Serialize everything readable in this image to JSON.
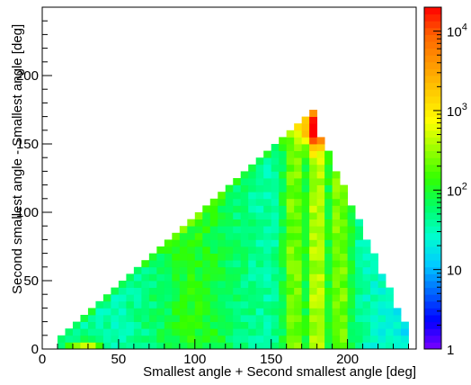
{
  "chart_data": {
    "type": "heatmap",
    "title": "",
    "xlabel": "Smallest angle + Second smallest angle [deg]",
    "ylabel": "Second smallest angle - Smallest angle [deg]",
    "xlim": [
      0,
      245
    ],
    "ylim": [
      0,
      250
    ],
    "bin_width_deg": 5,
    "x_ticks": [
      0,
      50,
      100,
      150,
      200
    ],
    "y_ticks": [
      0,
      50,
      100,
      150,
      200
    ],
    "x_tick_labels": [
      "0",
      "50",
      "100",
      "150",
      "200"
    ],
    "y_tick_labels": [
      "0",
      "50",
      "100",
      "150",
      "200"
    ],
    "colorbar": {
      "scale": "log",
      "range": [
        1,
        20000
      ],
      "ticks": [
        1,
        10,
        100,
        1000,
        10000
      ],
      "tick_labels": [
        {
          "base": "1",
          "exp": ""
        },
        {
          "base": "10",
          "exp": ""
        },
        {
          "base": "10",
          "exp": "2"
        },
        {
          "base": "10",
          "exp": "3"
        },
        {
          "base": "10",
          "exp": "4"
        }
      ],
      "colors": [
        "#7b00ff",
        "#0000ff",
        "#0066ff",
        "#00ccff",
        "#00ffcc",
        "#00ff66",
        "#33ff00",
        "#99ff00",
        "#ffff00",
        "#ffcc00",
        "#ff9900",
        "#ff6600",
        "#ff0000"
      ]
    },
    "support_region": {
      "x_min": 10,
      "x_max": 240,
      "apex_x": 180,
      "apex_y": 175,
      "rule": "y <= x for x <= 180; y <= 2.5*(245 - x) for x > 180"
    },
    "features": [
      {
        "description": "hot spot near x=180, y=150-170",
        "peak_counts": 20000
      },
      {
        "description": "vertical ridge near x=180",
        "counts": 1500
      },
      {
        "description": "vertical bands near x=165 and x=195",
        "counts": 400
      },
      {
        "description": "bright diagonal edge y=x",
        "counts": 500
      },
      {
        "description": "bright corner near x=20-40, y=0-10",
        "counts": 2000
      }
    ]
  }
}
